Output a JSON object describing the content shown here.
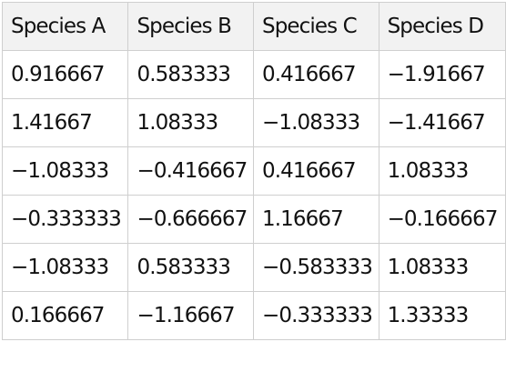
{
  "table": {
    "headers": [
      "Species A",
      "Species B",
      "Species C",
      "Species D"
    ],
    "rows": [
      [
        "0.916667",
        "0.583333",
        "0.416667",
        "−1.91667"
      ],
      [
        "1.41667",
        "1.08333",
        "−1.08333",
        "−1.41667"
      ],
      [
        "−1.08333",
        "−0.416667",
        "0.416667",
        "1.08333"
      ],
      [
        "−0.333333",
        "−0.666667",
        "1.16667",
        "−0.166667"
      ],
      [
        "−1.08333",
        "0.583333",
        "−0.583333",
        "1.08333"
      ],
      [
        "0.166667",
        "−1.16667",
        "−0.333333",
        "1.33333"
      ]
    ]
  },
  "colors": {
    "header_background": "#f2f2f2",
    "grid_line": "#cfcfcf",
    "text": "#111111"
  }
}
